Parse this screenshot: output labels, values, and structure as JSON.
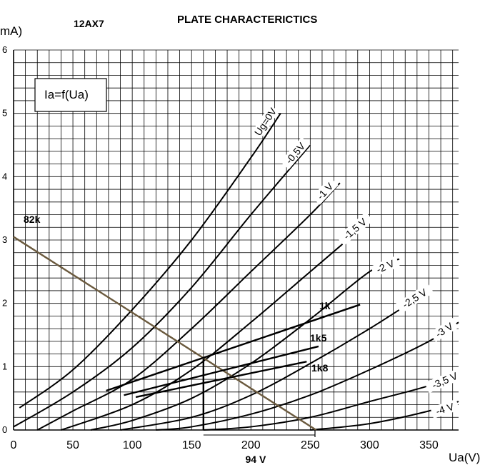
{
  "chart_data": {
    "type": "line",
    "title": "PLATE CHARACTERICTICS",
    "subtitle": "12AX7",
    "xlabel": "Ua(V)",
    "ylabel": "mA)",
    "formula": "Ia=f(Ua)",
    "xlim": [
      0,
      375
    ],
    "ylim": [
      0,
      6
    ],
    "xticks": [
      "0",
      "50",
      "100",
      "150",
      "200",
      "250",
      "300",
      "350"
    ],
    "xtick_values": [
      0,
      50,
      100,
      150,
      200,
      250,
      300,
      350
    ],
    "yticks": [
      "0",
      "1",
      "2",
      "3",
      "4",
      "5",
      "6"
    ],
    "ytick_values": [
      0,
      1,
      2,
      3,
      4,
      5,
      6
    ],
    "grid": true,
    "series": [
      {
        "name": "Ug=0V",
        "x": [
          5,
          50,
          100,
          150,
          200,
          225
        ],
        "y": [
          0.35,
          0.95,
          1.9,
          3.0,
          4.3,
          5.0
        ]
      },
      {
        "name": "-0,5V",
        "x": [
          0,
          50,
          100,
          150,
          200,
          250
        ],
        "y": [
          0.05,
          0.6,
          1.3,
          2.25,
          3.4,
          4.5
        ]
      },
      {
        "name": "-1 V",
        "x": [
          20,
          50,
          100,
          150,
          200,
          250,
          275
        ],
        "y": [
          0.0,
          0.3,
          0.8,
          1.6,
          2.5,
          3.4,
          3.9
        ]
      },
      {
        "name": "-1,5 V",
        "x": [
          40,
          100,
          150,
          200,
          250,
          300
        ],
        "y": [
          0.0,
          0.4,
          0.95,
          1.7,
          2.5,
          3.3
        ]
      },
      {
        "name": "-2 V",
        "x": [
          65,
          100,
          150,
          200,
          250,
          300,
          325
        ],
        "y": [
          0.0,
          0.15,
          0.5,
          1.05,
          1.75,
          2.5,
          2.7
        ]
      },
      {
        "name": "-2,5 V",
        "x": [
          90,
          150,
          200,
          250,
          300,
          350
        ],
        "y": [
          0.0,
          0.2,
          0.55,
          1.05,
          1.6,
          2.2
        ]
      },
      {
        "name": "-3 V",
        "x": [
          120,
          150,
          200,
          250,
          300,
          350,
          375
        ],
        "y": [
          0.0,
          0.05,
          0.25,
          0.55,
          0.95,
          1.4,
          1.7
        ]
      },
      {
        "name": "-3,5 V",
        "x": [
          160,
          200,
          250,
          300,
          350,
          375
        ],
        "y": [
          0.0,
          0.05,
          0.2,
          0.45,
          0.7,
          0.9
        ]
      },
      {
        "name": "-4 V",
        "x": [
          250,
          300,
          350,
          375
        ],
        "y": [
          0.0,
          0.1,
          0.3,
          0.45
        ]
      }
    ],
    "load_lines": [
      {
        "name": "82k",
        "x": [
          0,
          255
        ],
        "y": [
          3.05,
          0.0
        ],
        "color": "#6b5a3e"
      },
      {
        "name": "1k",
        "x": [
          78,
          292
        ],
        "y": [
          0.62,
          1.98
        ],
        "color": "#000000"
      },
      {
        "name": "1k5",
        "x": [
          93,
          257
        ],
        "y": [
          0.55,
          1.32
        ],
        "color": "#000000"
      },
      {
        "name": "1k8",
        "x": [
          103,
          247
        ],
        "y": [
          0.52,
          1.08
        ],
        "color": "#000000"
      }
    ],
    "annotations": {
      "operating_point": {
        "x": 160,
        "y": 1.12
      },
      "operating_voltage_label": "94 V",
      "swing": {
        "x_start": 160,
        "x_end": 254,
        "y": 0.0
      }
    }
  }
}
